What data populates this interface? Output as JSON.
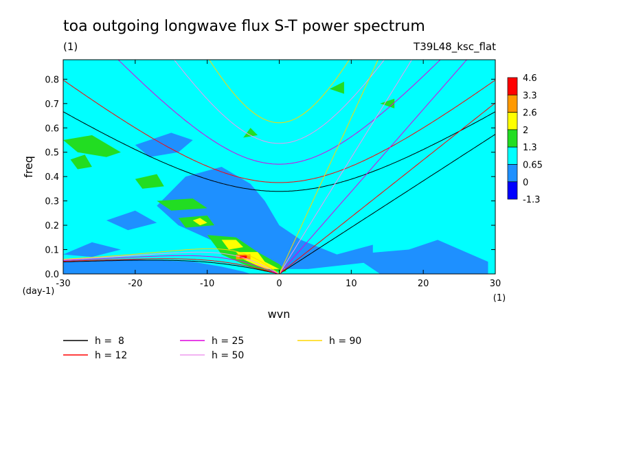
{
  "chart_data": {
    "type": "heatmap",
    "title": "toa outgoing longwave flux S-T power spectrum",
    "subtitle_left": "(1)",
    "subtitle_right": "T39L48_ksc_flat",
    "xlabel": "wvn",
    "ylabel": "freq",
    "x_unit": "(1)",
    "y_unit": "(day-1)",
    "xlim": [
      -30,
      30
    ],
    "ylim": [
      0,
      0.88
    ],
    "xticks": [
      -30,
      -20,
      -10,
      0,
      10,
      20,
      30
    ],
    "yticks": [
      0.0,
      0.1,
      0.2,
      0.3,
      0.4,
      0.5,
      0.6,
      0.7,
      0.8
    ],
    "colorbar": {
      "levels": [
        "4.6",
        "3.3",
        "2.6",
        "2",
        "1.3",
        "0.65",
        "0",
        "-1.3"
      ],
      "colors": [
        "#ff0000",
        "#ff9900",
        "#ffff00",
        "#22dd22",
        "#00ffff",
        "#1e90ff",
        "#0000ff"
      ]
    },
    "background_color": "#00ffff",
    "dispersion_curves": [
      {
        "name": "h =  8",
        "h": 8,
        "color": "#000000"
      },
      {
        "name": "h = 12",
        "h": 12,
        "color": "#ff0000"
      },
      {
        "name": "h = 25",
        "h": 25,
        "color": "#dd00dd"
      },
      {
        "name": "h = 50",
        "h": 50,
        "color": "#ee99ee"
      },
      {
        "name": "h = 90",
        "h": 90,
        "color": "#ffd700"
      }
    ],
    "features": [
      {
        "level": "0.65",
        "region": "broad low-power band along the Kelvin/Rossby region"
      },
      {
        "level": "1.3",
        "region": "scattered patches near wvn -25..-5, freq 0.05..0.55"
      },
      {
        "level": "4.6",
        "region": "peak near wvn -5, freq 0.07"
      }
    ]
  }
}
